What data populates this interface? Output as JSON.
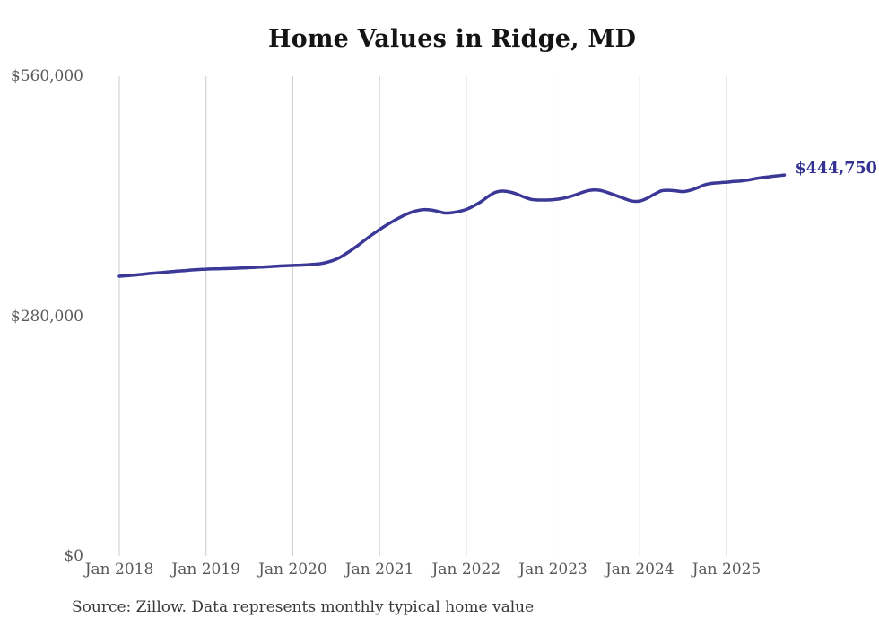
{
  "chart_data": {
    "type": "line",
    "title": "Home Values in Ridge, MD",
    "source": "Source: Zillow. Data represents monthly typical home value",
    "end_label": "$444,750",
    "latest_value": 444750,
    "ylim": [
      0,
      560000
    ],
    "grid": "vertical-only",
    "legend": "none",
    "line_color": "#3b3897",
    "grid_color": "#cccccc",
    "y_ticks": [
      {
        "value": 0,
        "label": "$0"
      },
      {
        "value": 280000,
        "label": "$280,000"
      },
      {
        "value": 560000,
        "label": "$560,000"
      }
    ],
    "x_ticks": [
      "Jan 2018",
      "Jan 2019",
      "Jan 2020",
      "Jan 2021",
      "Jan 2022",
      "Jan 2023",
      "Jan 2024",
      "Jan 2025"
    ],
    "x_start": "Jan 2018",
    "x_end": "Sep 2025",
    "series": [
      {
        "name": "Typical home value",
        "months": [
          "2018-01",
          "2018-02",
          "2018-03",
          "2018-04",
          "2018-05",
          "2018-06",
          "2018-07",
          "2018-08",
          "2018-09",
          "2018-10",
          "2018-11",
          "2018-12",
          "2019-01",
          "2019-02",
          "2019-03",
          "2019-04",
          "2019-05",
          "2019-06",
          "2019-07",
          "2019-08",
          "2019-09",
          "2019-10",
          "2019-11",
          "2019-12",
          "2020-01",
          "2020-02",
          "2020-03",
          "2020-04",
          "2020-05",
          "2020-06",
          "2020-07",
          "2020-08",
          "2020-09",
          "2020-10",
          "2020-11",
          "2020-12",
          "2021-01",
          "2021-02",
          "2021-03",
          "2021-04",
          "2021-05",
          "2021-06",
          "2021-07",
          "2021-08",
          "2021-09",
          "2021-10",
          "2021-11",
          "2021-12",
          "2022-01",
          "2022-02",
          "2022-03",
          "2022-04",
          "2022-05",
          "2022-06",
          "2022-07",
          "2022-08",
          "2022-09",
          "2022-10",
          "2022-11",
          "2022-12",
          "2023-01",
          "2023-02",
          "2023-03",
          "2023-04",
          "2023-05",
          "2023-06",
          "2023-07",
          "2023-08",
          "2023-09",
          "2023-10",
          "2023-11",
          "2023-12",
          "2024-01",
          "2024-02",
          "2024-03",
          "2024-04",
          "2024-05",
          "2024-06",
          "2024-07",
          "2024-08",
          "2024-09",
          "2024-10",
          "2024-11",
          "2024-12",
          "2025-01",
          "2025-02",
          "2025-03",
          "2025-04",
          "2025-05",
          "2025-06",
          "2025-07",
          "2025-08",
          "2025-09"
        ],
        "values": [
          326600,
          327200,
          327900,
          328700,
          329600,
          330400,
          331100,
          331800,
          332500,
          333200,
          333900,
          334400,
          334900,
          335200,
          335400,
          335600,
          335900,
          336200,
          336600,
          337000,
          337500,
          338000,
          338500,
          338900,
          339200,
          339600,
          340000,
          340600,
          341500,
          343500,
          346500,
          351000,
          356500,
          362500,
          369000,
          375300,
          381000,
          386500,
          391500,
          396000,
          400000,
          402800,
          404300,
          404000,
          402500,
          400400,
          400800,
          402300,
          404600,
          408500,
          413500,
          419500,
          424500,
          426000,
          425000,
          422500,
          419000,
          416300,
          415600,
          415600,
          416000,
          417000,
          418800,
          421300,
          424300,
          426800,
          427300,
          425800,
          423000,
          420000,
          416800,
          414300,
          414400,
          417500,
          422300,
          426300,
          427000,
          426300,
          425400,
          427000,
          430000,
          433300,
          435000,
          435800,
          436400,
          437200,
          437800,
          438900,
          440600,
          441800,
          442800,
          443800,
          444750
        ]
      }
    ]
  }
}
